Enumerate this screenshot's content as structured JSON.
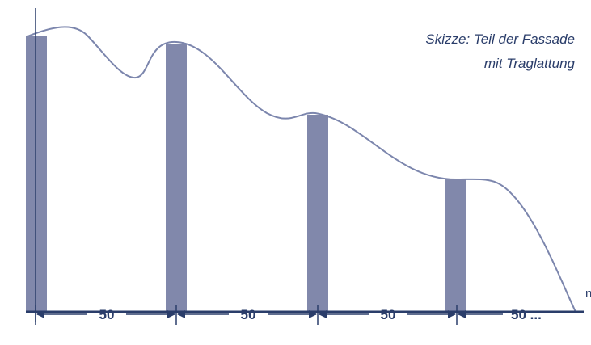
{
  "caption": {
    "line1": "Skizze: Teil der Fassade",
    "line2": "mit Traglattung"
  },
  "edge_label": "n",
  "dimensions": [
    {
      "label": "50"
    },
    {
      "label": "50"
    },
    {
      "label": "50"
    },
    {
      "label": "50 ..."
    }
  ],
  "battens": [
    {
      "name": "batten-1"
    },
    {
      "name": "batten-2"
    },
    {
      "name": "batten-3"
    },
    {
      "name": "batten-4"
    }
  ],
  "colors": {
    "line": "#2a3d6a",
    "curve": "#7c86ad",
    "batten": "#8188ab"
  }
}
